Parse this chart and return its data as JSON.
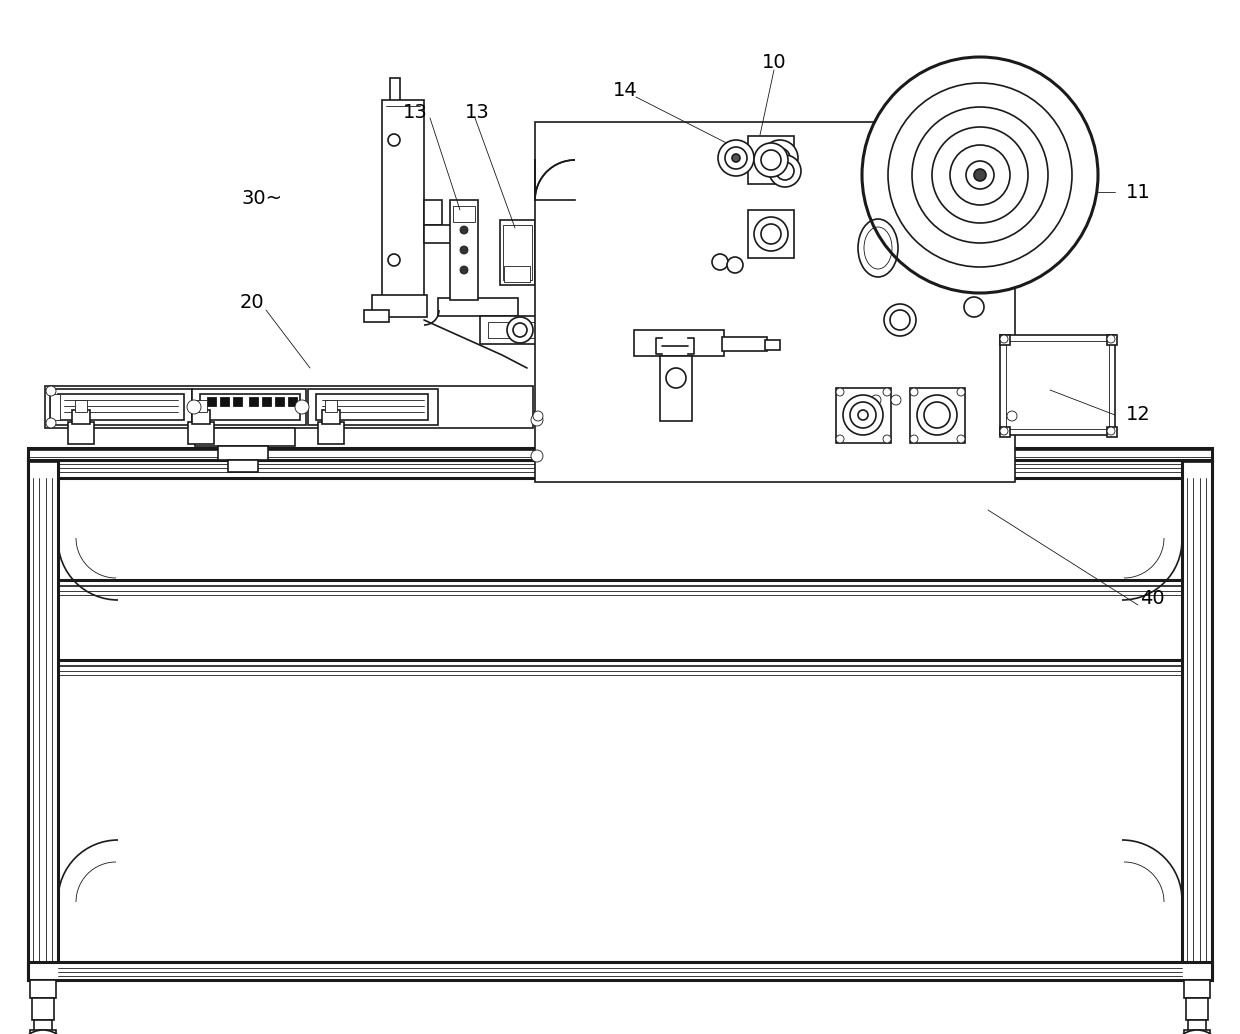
{
  "background_color": "#ffffff",
  "line_color": "#1a1a1a",
  "lw": 1.2,
  "tlw": 0.6,
  "thw": 2.2,
  "figsize": [
    12.4,
    10.34
  ],
  "dpi": 100
}
